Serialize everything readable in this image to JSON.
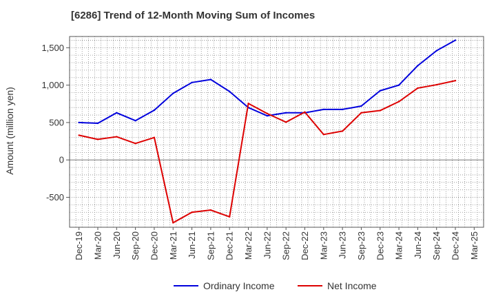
{
  "chart_data": {
    "type": "line",
    "title": "[6286]  Trend of 12-Month Moving Sum of Incomes",
    "xlabel": "",
    "ylabel": "Amount (million yen)",
    "ylim": [
      -900,
      1650
    ],
    "yticks": [
      1500,
      1000,
      500,
      0,
      -500
    ],
    "ytick_labels": [
      "1,500",
      "1,000",
      "500",
      "0",
      "-500"
    ],
    "categories": [
      "Dec-19",
      "Mar-20",
      "Jun-20",
      "Sep-20",
      "Dec-20",
      "Mar-21",
      "Jun-21",
      "Sep-21",
      "Dec-21",
      "Mar-22",
      "Jun-22",
      "Sep-22",
      "Dec-22",
      "Mar-23",
      "Jun-23",
      "Sep-23",
      "Dec-23",
      "Mar-24",
      "Jun-24",
      "Sep-24",
      "Dec-24",
      "Mar-25"
    ],
    "grid": true,
    "legend_position": "bottom-center",
    "series": [
      {
        "name": "Ordinary Income",
        "color": "#0000dd",
        "values": [
          500,
          490,
          630,
          525,
          665,
          890,
          1035,
          1075,
          915,
          700,
          590,
          630,
          630,
          675,
          675,
          720,
          925,
          1000,
          1260,
          1460,
          1600,
          null
        ]
      },
      {
        "name": "Net Income",
        "color": "#dd0000",
        "values": [
          330,
          275,
          310,
          220,
          300,
          -840,
          -700,
          -670,
          -760,
          755,
          620,
          505,
          640,
          340,
          385,
          630,
          660,
          780,
          960,
          1005,
          1060,
          null
        ]
      }
    ]
  }
}
